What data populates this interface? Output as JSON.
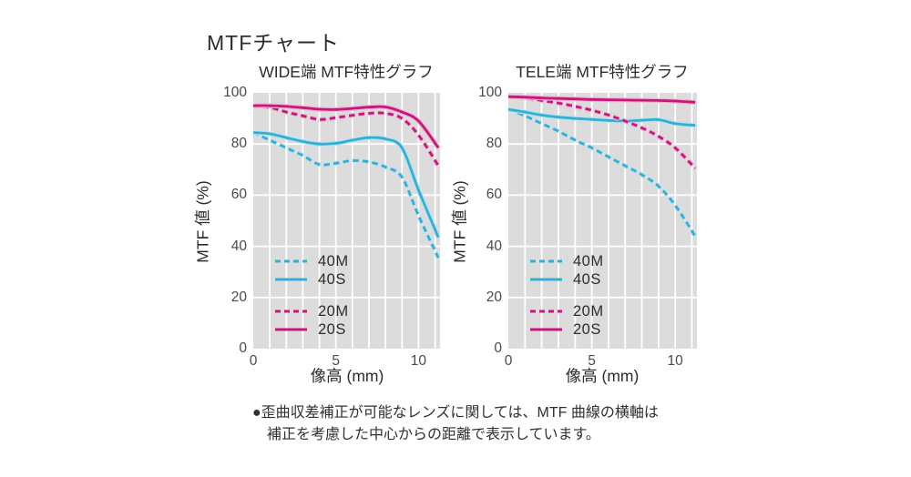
{
  "page_title": "MTFチャート",
  "colors": {
    "cyan": "#35aed3",
    "cyan_halo": "#b9e3f0",
    "magenta": "#c9167b",
    "magenta_halo": "#f0b4d3",
    "plot_background": "#dcdcdc",
    "gridline": "#ffffff",
    "text_dark": "#2d2d2d",
    "tick_text": "#4a4a4a"
  },
  "footnote": {
    "line1": "●歪曲収差補正が可能なレンズに関しては、MTF 曲線の横軸は",
    "line2": "補正を考慮した中心からの距離で表示しています。"
  },
  "chart_data": [
    {
      "type": "line",
      "title": "WIDE端 MTF特性グラフ",
      "xlabel": "像高 (mm)",
      "ylabel": "MTF 値 (%)",
      "xlim": [
        0,
        11.3
      ],
      "ylim": [
        0,
        100
      ],
      "x_ticks": [
        0,
        5,
        10
      ],
      "y_ticks": [
        0,
        20,
        40,
        60,
        80,
        100
      ],
      "grid": {
        "x_step": 1,
        "y_step": 20,
        "enabled": true
      },
      "legend_position": "inside-bottom-left",
      "x": [
        0,
        1,
        2,
        3,
        4,
        5,
        6,
        7,
        8,
        9,
        10,
        11.2
      ],
      "series": [
        {
          "name": "40M",
          "style": "dashed",
          "color_key": "cyan",
          "values": [
            84.5,
            81.5,
            78.5,
            75.5,
            72,
            72.5,
            73.5,
            73,
            71,
            67,
            52,
            35.5
          ]
        },
        {
          "name": "40S",
          "style": "solid",
          "color_key": "cyan",
          "values": [
            84.5,
            84,
            82.5,
            81,
            80,
            80.3,
            81.5,
            82.5,
            82,
            78.5,
            62,
            43.5
          ]
        },
        {
          "name": "20M",
          "style": "dashed",
          "color_key": "magenta",
          "values": [
            95,
            94.3,
            92.5,
            91,
            89.6,
            90.3,
            91.2,
            92,
            92,
            90,
            83.5,
            71.5
          ]
        },
        {
          "name": "20S",
          "style": "solid",
          "color_key": "magenta",
          "values": [
            95,
            95,
            94.7,
            94.2,
            93.6,
            93.5,
            93.9,
            94.4,
            94.5,
            92.5,
            89,
            78.5
          ]
        }
      ]
    },
    {
      "type": "line",
      "title": "TELE端 MTF特性グラフ",
      "xlabel": "像高 (mm)",
      "ylabel": "MTF 値 (%)",
      "xlim": [
        0,
        11.3
      ],
      "ylim": [
        0,
        100
      ],
      "x_ticks": [
        0,
        5,
        10
      ],
      "y_ticks": [
        0,
        20,
        40,
        60,
        80,
        100
      ],
      "grid": {
        "x_step": 1,
        "y_step": 20,
        "enabled": true
      },
      "legend_position": "inside-bottom-left",
      "x": [
        0,
        1,
        2,
        3,
        4,
        5,
        6,
        7,
        8,
        9,
        10,
        11.2
      ],
      "series": [
        {
          "name": "40M",
          "style": "dashed",
          "color_key": "cyan",
          "values": [
            93.5,
            91,
            88,
            85,
            81.5,
            78.5,
            75,
            71.5,
            68,
            63.5,
            56,
            44
          ]
        },
        {
          "name": "40S",
          "style": "solid",
          "color_key": "cyan",
          "values": [
            93.5,
            92.5,
            91.3,
            90.5,
            90,
            89.6,
            89.2,
            89,
            89.3,
            89.5,
            88,
            87.3
          ]
        },
        {
          "name": "20M",
          "style": "dashed",
          "color_key": "magenta",
          "values": [
            98.5,
            98,
            97,
            96,
            94.7,
            93.2,
            91.3,
            89,
            86.3,
            83,
            78.5,
            70.5
          ]
        },
        {
          "name": "20S",
          "style": "solid",
          "color_key": "magenta",
          "values": [
            98.5,
            98.3,
            98,
            97.8,
            97.6,
            97.4,
            97.3,
            97.2,
            97.1,
            97,
            96.8,
            96.3
          ]
        }
      ]
    }
  ]
}
